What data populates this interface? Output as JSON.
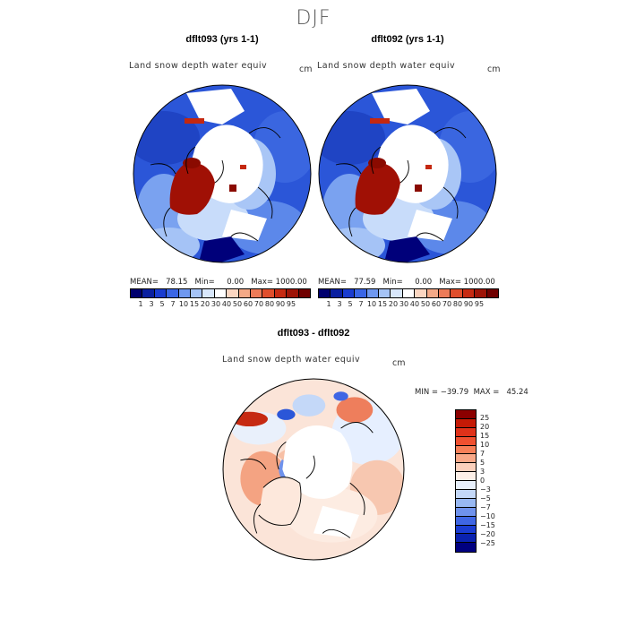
{
  "page": {
    "season": "DJF"
  },
  "panels": [
    {
      "title": "dflt093 (yrs 1-1)",
      "variable": "Land snow depth water equiv",
      "units": "cm",
      "stats": "MEAN=   78.15   Min=     0.00   Max= 1000.00"
    },
    {
      "title": "dflt092 (yrs 1-1)",
      "variable": "Land snow depth water equiv",
      "units": "cm",
      "stats": "MEAN=   77.59   Min=     0.00   Max= 1000.00"
    }
  ],
  "colorbar": {
    "colors": [
      "#00006e",
      "#0a1fa0",
      "#1a3cd0",
      "#3a66e6",
      "#6f98f0",
      "#a5c3f6",
      "#d8e7fb",
      "#ffffff",
      "#fbd6c1",
      "#f4a987",
      "#ec7b58",
      "#e04e2c",
      "#c62a12",
      "#9e1407",
      "#700000"
    ],
    "labels": [
      "1",
      "3",
      "5",
      "7",
      "10",
      "15",
      "20",
      "30",
      "40",
      "50",
      "60",
      "70",
      "80",
      "90",
      "95"
    ]
  },
  "diff": {
    "title": "dflt093 - dflt092",
    "variable": "Land snow depth water equiv",
    "units": "cm",
    "range": "MIN = −39.79  MAX =   45.24",
    "colorbar": {
      "colors": [
        "#8b0000",
        "#c41a06",
        "#e0321a",
        "#f05030",
        "#f77f58",
        "#f9a888",
        "#fbd0bc",
        "#fdf0e8",
        "#e8f0fc",
        "#c4d8f8",
        "#98b8f2",
        "#6f92ec",
        "#3f66e4",
        "#1a3cd2",
        "#0a22b0",
        "#000080"
      ],
      "labels": [
        "25",
        "20",
        "15",
        "10",
        "7",
        "5",
        "3",
        "0",
        "−3",
        "−5",
        "−7",
        "−10",
        "−15",
        "−20",
        "−25"
      ]
    }
  }
}
